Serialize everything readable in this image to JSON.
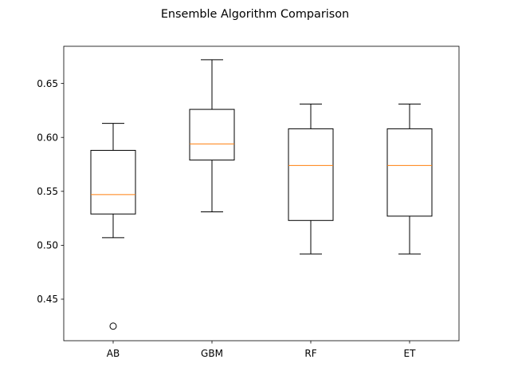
{
  "chart_data": {
    "type": "box",
    "title": "Ensemble Algorithm Comparison",
    "xlabel": "",
    "ylabel": "",
    "categories": [
      "AB",
      "GBM",
      "RF",
      "ET"
    ],
    "boxes": [
      {
        "name": "AB",
        "whisker_low": 0.507,
        "q1": 0.529,
        "median": 0.547,
        "q3": 0.588,
        "whisker_high": 0.613,
        "outliers": [
          0.425
        ]
      },
      {
        "name": "GBM",
        "whisker_low": 0.531,
        "q1": 0.579,
        "median": 0.594,
        "q3": 0.626,
        "whisker_high": 0.672,
        "outliers": []
      },
      {
        "name": "RF",
        "whisker_low": 0.492,
        "q1": 0.523,
        "median": 0.574,
        "q3": 0.608,
        "whisker_high": 0.631,
        "outliers": []
      },
      {
        "name": "ET",
        "whisker_low": 0.492,
        "q1": 0.527,
        "median": 0.574,
        "q3": 0.608,
        "whisker_high": 0.631,
        "outliers": []
      }
    ],
    "ylim": [
      0.4115,
      0.6845
    ],
    "yticks": [
      0.45,
      0.5,
      0.55,
      0.6,
      0.65
    ],
    "ytick_labels": [
      "0.45",
      "0.50",
      "0.55",
      "0.60",
      "0.65"
    ],
    "grid": false,
    "colors": {
      "box": "#000000",
      "median": "#ff7f0e",
      "axes": "#000000"
    }
  }
}
